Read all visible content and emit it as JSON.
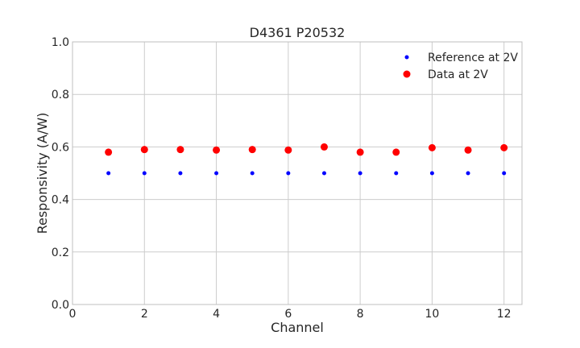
{
  "chart_data": {
    "type": "scatter",
    "title": "D4361 P20532",
    "xlabel": "Channel",
    "ylabel": "Responsivity (A/W)",
    "xlim": [
      0,
      12.5
    ],
    "ylim": [
      0.0,
      1.0
    ],
    "xticks": [
      0,
      2,
      4,
      6,
      8,
      10,
      12
    ],
    "xtick_labels": [
      "0",
      "2",
      "4",
      "6",
      "8",
      "10",
      "12"
    ],
    "yticks": [
      0.0,
      0.2,
      0.4,
      0.6,
      0.8,
      1.0
    ],
    "ytick_labels": [
      "0.0",
      "0.2",
      "0.4",
      "0.6",
      "0.8",
      "1.0"
    ],
    "grid": true,
    "legend_position": "top-right",
    "x": [
      1,
      2,
      3,
      4,
      5,
      6,
      7,
      8,
      9,
      10,
      11,
      12
    ],
    "series": [
      {
        "name": "Reference at 2V",
        "color": "#0000ff",
        "marker": "small-dot",
        "values": [
          0.5,
          0.5,
          0.5,
          0.5,
          0.5,
          0.5,
          0.5,
          0.5,
          0.5,
          0.5,
          0.5,
          0.5
        ]
      },
      {
        "name": "Data at 2V",
        "color": "#ff0000",
        "marker": "large-dot",
        "values": [
          0.58,
          0.59,
          0.59,
          0.588,
          0.59,
          0.588,
          0.6,
          0.58,
          0.58,
          0.597,
          0.588,
          0.597
        ]
      }
    ]
  }
}
